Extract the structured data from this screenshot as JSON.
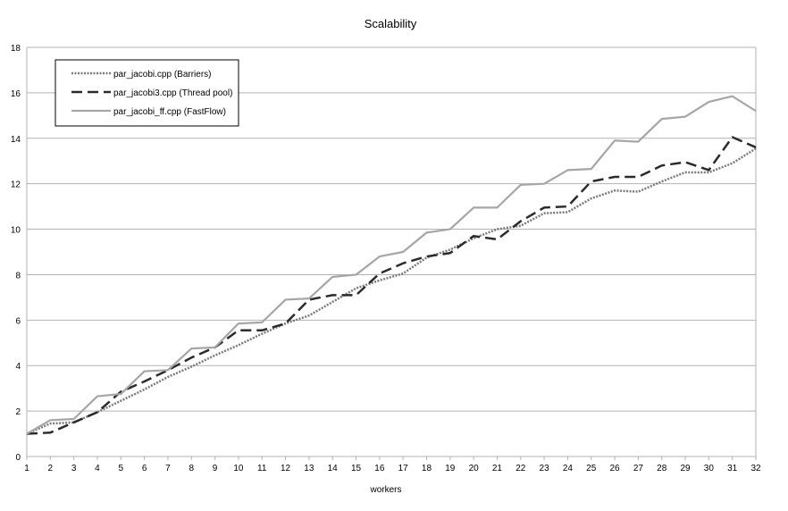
{
  "chart_data": {
    "type": "line",
    "title": "Scalability",
    "xlabel": "workers",
    "ylabel": "",
    "xlim": [
      1,
      32
    ],
    "ylim": [
      0,
      18
    ],
    "yticks": [
      0,
      2,
      4,
      6,
      8,
      10,
      12,
      14,
      16,
      18
    ],
    "grid": "horizontal",
    "legend_position": "top-left",
    "categories": [
      "1",
      "2",
      "3",
      "4",
      "5",
      "6",
      "7",
      "8",
      "9",
      "10",
      "11",
      "12",
      "13",
      "14",
      "15",
      "16",
      "17",
      "18",
      "19",
      "20",
      "21",
      "22",
      "23",
      "24",
      "25",
      "26",
      "27",
      "28",
      "29",
      "30",
      "31",
      "32"
    ],
    "series": [
      {
        "name": "par_jacobi.cpp (Barriers)",
        "style": "dotted",
        "color": "#7a7a7a",
        "values": [
          1.0,
          1.45,
          1.5,
          1.95,
          2.45,
          2.95,
          3.5,
          3.95,
          4.45,
          4.9,
          5.4,
          5.85,
          6.2,
          6.8,
          7.4,
          7.75,
          8.05,
          8.75,
          9.1,
          9.6,
          10.0,
          10.15,
          10.7,
          10.75,
          11.35,
          11.7,
          11.65,
          12.1,
          12.5,
          12.5,
          12.9,
          13.55
        ]
      },
      {
        "name": "par_jacobi3.cpp (Thread pool)",
        "style": "dashed",
        "color": "#2b2b2b",
        "values": [
          1.0,
          1.05,
          1.5,
          1.95,
          2.85,
          3.3,
          3.8,
          4.35,
          4.8,
          5.55,
          5.55,
          5.85,
          6.9,
          7.1,
          7.1,
          8.05,
          8.5,
          8.8,
          8.95,
          9.7,
          9.55,
          10.35,
          10.95,
          11.0,
          12.1,
          12.3,
          12.3,
          12.8,
          12.95,
          12.6,
          14.05,
          13.6
        ]
      },
      {
        "name": "par_jacobi_ff.cpp (FastFlow)",
        "style": "solid",
        "color": "#a6a6a6",
        "values": [
          1.0,
          1.6,
          1.65,
          2.65,
          2.75,
          3.75,
          3.8,
          4.75,
          4.8,
          5.85,
          5.9,
          6.9,
          6.95,
          7.9,
          8.0,
          8.8,
          9.0,
          9.85,
          10.0,
          10.95,
          10.95,
          11.95,
          12.0,
          12.6,
          12.65,
          13.9,
          13.85,
          14.85,
          14.95,
          15.6,
          15.85,
          15.2
        ]
      }
    ]
  }
}
